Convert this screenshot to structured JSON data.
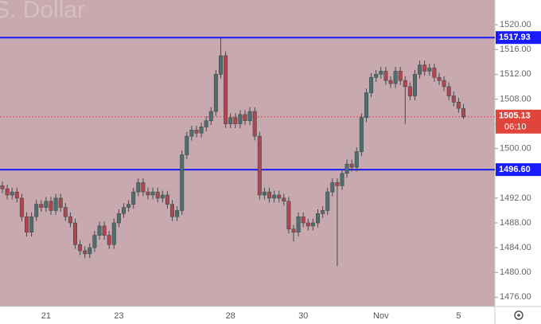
{
  "chart_data": {
    "type": "candlestick",
    "title": "S. Dollar",
    "categories": [
      null,
      null,
      null,
      null,
      null,
      null,
      null,
      null,
      null,
      "21",
      null,
      null,
      null,
      null,
      null,
      null,
      null,
      null,
      null,
      null,
      null,
      null,
      null,
      null,
      "23",
      null,
      null,
      null,
      null,
      null,
      null,
      null,
      null,
      null,
      null,
      null,
      null,
      null,
      null,
      null,
      null,
      null,
      null,
      null,
      null,
      null,
      null,
      "28",
      null,
      null,
      null,
      null,
      null,
      null,
      null,
      null,
      null,
      null,
      null,
      null,
      null,
      null,
      "30",
      null,
      null,
      null,
      null,
      null,
      null,
      null,
      null,
      null,
      null,
      null,
      null,
      null,
      null,
      null,
      "Nov",
      null,
      null,
      null,
      null,
      null,
      null,
      null,
      null,
      null,
      null,
      null,
      null,
      null,
      null,
      null,
      "5",
      null
    ],
    "series": {
      "up_color": "#4f6e6e",
      "down_color": "#b2454f",
      "open": [
        1494,
        1493.5,
        1492.5,
        1493,
        1492,
        1489,
        1486.5,
        1489,
        1491,
        1490.5,
        1491.5,
        1490,
        1492,
        1490.5,
        1489,
        1488,
        1484.5,
        1483.5,
        1483,
        1484,
        1486,
        1487.5,
        1486,
        1484.5,
        1488,
        1489.5,
        1490.5,
        1491,
        1493,
        1494.5,
        1493,
        1492.5,
        1493,
        1492,
        1492.5,
        1491,
        1489,
        1490,
        1499,
        1502,
        1503,
        1502.5,
        1503.5,
        1504.5,
        1506,
        1512,
        1515,
        1504,
        1505,
        1504,
        1505.5,
        1504.5,
        1506,
        1502,
        1492.5,
        1493,
        1492,
        1492.5,
        1492,
        1491.5,
        1487,
        1486.5,
        1489,
        1488,
        1487.5,
        1488,
        1489.5,
        1490,
        1493,
        1494.5,
        1494,
        1496,
        1497.5,
        1497,
        1499.5,
        1505,
        1509,
        1511.5,
        1512,
        1512.5,
        1511,
        1510.5,
        1512.5,
        1511,
        1510,
        1508.5,
        1512,
        1513.5,
        1512.5,
        1513,
        1511.5,
        1511,
        1510,
        1508.5,
        1507.5,
        1506.5
      ],
      "high": [
        1494.7,
        1494.2,
        1493.7,
        1493.7,
        1492.7,
        1489.7,
        1489.7,
        1491.7,
        1491.7,
        1492.2,
        1492.2,
        1492.7,
        1492.7,
        1491.2,
        1489.7,
        1488.7,
        1485.2,
        1484.2,
        1484.7,
        1486.7,
        1488.2,
        1488.2,
        1486.7,
        1488.7,
        1490.2,
        1491.2,
        1491.7,
        1493.7,
        1495.2,
        1495.2,
        1493.7,
        1493.7,
        1493.7,
        1493.2,
        1493.2,
        1491.7,
        1490.7,
        1499.7,
        1502.7,
        1503.7,
        1503.7,
        1504.2,
        1505.2,
        1506.7,
        1512.7,
        1517.93,
        1515.7,
        1505.7,
        1505.7,
        1506.2,
        1506.2,
        1506.7,
        1506.7,
        1502.7,
        1493.7,
        1493.7,
        1493.2,
        1493.2,
        1492.7,
        1492.2,
        1487.7,
        1489.7,
        1489.7,
        1488.7,
        1488.7,
        1490.2,
        1490.7,
        1493.7,
        1495.2,
        1495.2,
        1496.7,
        1498.2,
        1498.2,
        1500.2,
        1505.7,
        1509.7,
        1512.2,
        1512.7,
        1513.2,
        1513.2,
        1511.7,
        1513.2,
        1513.2,
        1511.7,
        1510.7,
        1512.7,
        1514.2,
        1514.2,
        1513.7,
        1513.7,
        1512.2,
        1511.7,
        1510.7,
        1509.2,
        1508.2,
        1507.2
      ],
      "low": [
        1492.8,
        1491.8,
        1491.8,
        1491.3,
        1488.3,
        1485.8,
        1485.8,
        1488.3,
        1489.8,
        1489.8,
        1489.3,
        1489.3,
        1489.8,
        1488.3,
        1487.3,
        1483.8,
        1482.8,
        1482.3,
        1482.3,
        1483.3,
        1485.3,
        1485.3,
        1483.8,
        1483.8,
        1487.3,
        1488.8,
        1489.8,
        1490.3,
        1492.3,
        1492.3,
        1491.8,
        1491.8,
        1491.3,
        1491.3,
        1490.3,
        1488.3,
        1488.3,
        1489.3,
        1498.3,
        1501.3,
        1501.8,
        1501.8,
        1502.8,
        1503.8,
        1505.3,
        1511.3,
        1503.3,
        1503.3,
        1503.3,
        1503.3,
        1503.8,
        1503.8,
        1501.3,
        1491.8,
        1491.8,
        1491.3,
        1491.3,
        1491.3,
        1490.8,
        1486.3,
        1485,
        1485.8,
        1487.3,
        1486.8,
        1486.8,
        1487.3,
        1488.8,
        1489.3,
        1492.3,
        1481,
        1493.3,
        1495.3,
        1496.3,
        1496.3,
        1498.8,
        1504.3,
        1508.3,
        1510.8,
        1511.3,
        1510.3,
        1509.8,
        1509.8,
        1510.3,
        1504,
        1507.8,
        1507.8,
        1511.3,
        1511.8,
        1511.8,
        1510.8,
        1510.3,
        1509.3,
        1507.8,
        1506.8,
        1505.8,
        1504.8
      ],
      "close": [
        1493.5,
        1492.5,
        1493,
        1492,
        1489,
        1486.5,
        1489,
        1491,
        1490.5,
        1491.5,
        1490,
        1492,
        1490.5,
        1489,
        1488,
        1484.5,
        1483.5,
        1483,
        1484,
        1486,
        1487.5,
        1486,
        1484.5,
        1488,
        1489.5,
        1490.5,
        1491,
        1493,
        1494.5,
        1493,
        1492.5,
        1493,
        1492,
        1492.5,
        1491,
        1489,
        1490,
        1499,
        1502,
        1503,
        1502.5,
        1503.5,
        1504.5,
        1506,
        1512,
        1515,
        1504,
        1505,
        1504,
        1505.5,
        1504.5,
        1506,
        1502,
        1492.5,
        1493,
        1492,
        1492.5,
        1492,
        1491.5,
        1487,
        1486.5,
        1489,
        1488,
        1487.5,
        1488,
        1489.5,
        1490,
        1493,
        1494.5,
        1494,
        1496,
        1497.5,
        1497,
        1499.5,
        1505,
        1509,
        1511.5,
        1512,
        1512.5,
        1511,
        1510.5,
        1512.5,
        1511,
        1510,
        1508.5,
        1512,
        1513.5,
        1512.5,
        1513,
        1511.5,
        1511,
        1510,
        1508.5,
        1507.5,
        1506.5,
        1505.13
      ]
    },
    "ylim": [
      1474.5,
      1524
    ],
    "yticks": [
      {
        "value": 1476,
        "label": "1476.00"
      },
      {
        "value": 1480,
        "label": "1480.00"
      },
      {
        "value": 1484,
        "label": "1484.00"
      },
      {
        "value": 1488,
        "label": "1488.00"
      },
      {
        "value": 1492,
        "label": "1492.00"
      },
      {
        "value": 1496,
        "label": "1496.00"
      },
      {
        "value": 1500,
        "label": "1500.00"
      },
      {
        "value": 1504,
        "label": "1504.00"
      },
      {
        "value": 1508,
        "label": "1508.00"
      },
      {
        "value": 1512,
        "label": "1512.00"
      },
      {
        "value": 1516,
        "label": "1516.00"
      },
      {
        "value": 1520,
        "label": "1520.00"
      }
    ],
    "hlines": [
      {
        "value": 1517.93,
        "color": "#1a1aff"
      },
      {
        "value": 1496.6,
        "label": "1496.60",
        "color": "#1a1aff"
      }
    ],
    "price_line": {
      "value": 1505.13,
      "countdown": "06:10",
      "color": "#e0453c"
    },
    "background": "#c8a9b0"
  }
}
